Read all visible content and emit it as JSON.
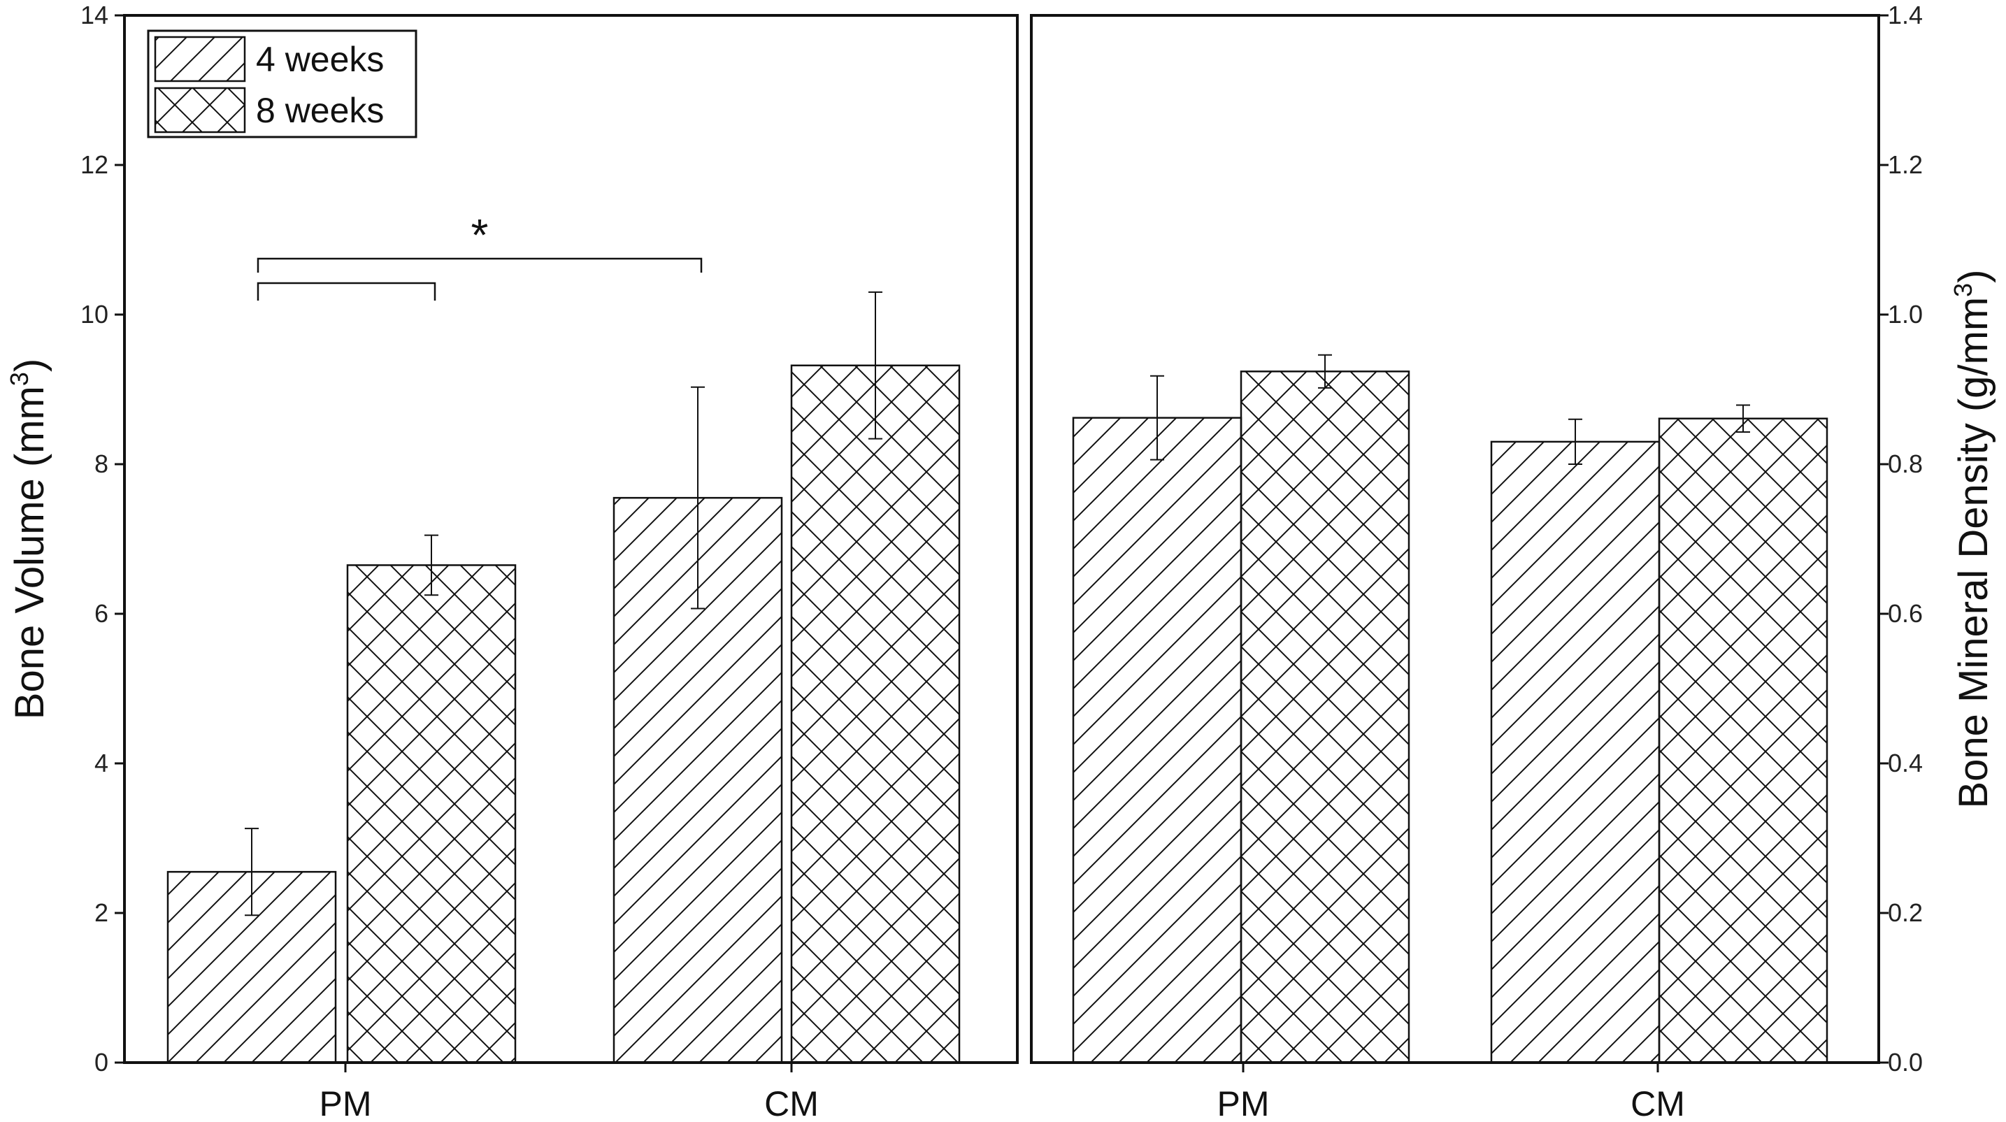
{
  "chart_data": [
    {
      "type": "bar",
      "panel": "left",
      "categories": [
        "PM",
        "CM"
      ],
      "ylabel_text": "Bone Volume (mm",
      "ylabel_sup": "3",
      "ylabel_close": ")",
      "ylim": [
        0,
        14
      ],
      "yticks": [
        "0",
        "2",
        "4",
        "6",
        "8",
        "10",
        "12",
        "14"
      ],
      "ytick_values": [
        0,
        2,
        4,
        6,
        8,
        10,
        12,
        14
      ],
      "series": [
        {
          "name": "4 weeks",
          "pattern": "hatch",
          "values": [
            2.55,
            7.55
          ],
          "errors": [
            0.58,
            1.48
          ]
        },
        {
          "name": "8 weeks",
          "pattern": "crosshatch",
          "values": [
            6.65,
            9.32
          ],
          "errors": [
            0.4,
            0.98
          ]
        }
      ],
      "significance": {
        "marker": "*",
        "upper_bracket": [
          "PM 4 weeks",
          "CM 4 weeks"
        ],
        "lower_bracket": [
          "PM 4 weeks",
          "PM 8 weeks"
        ]
      },
      "legend_position": "top-left",
      "grid": false
    },
    {
      "type": "bar",
      "panel": "right",
      "categories": [
        "PM",
        "CM"
      ],
      "ylabel_text": "Bone Mineral Density (g/mm",
      "ylabel_sup": "3",
      "ylabel_close": ")",
      "ylim": [
        0,
        1.4
      ],
      "yticks": [
        "0.0",
        "0.2",
        "0.4",
        "0.6",
        "0.8",
        "1.0",
        "1.2",
        "1.4"
      ],
      "ytick_values": [
        0,
        0.2,
        0.4,
        0.6,
        0.8,
        1.0,
        1.2,
        1.4
      ],
      "series": [
        {
          "name": "4 weeks",
          "pattern": "hatch",
          "values": [
            0.862,
            0.83
          ],
          "errors": [
            0.056,
            0.03
          ]
        },
        {
          "name": "8 weeks",
          "pattern": "crosshatch",
          "values": [
            0.924,
            0.861
          ],
          "errors": [
            0.022,
            0.018
          ]
        }
      ],
      "grid": false
    }
  ],
  "legend": {
    "items": [
      {
        "label": "4 weeks",
        "pattern": "hatch"
      },
      {
        "label": "8 weeks",
        "pattern": "crosshatch"
      }
    ]
  },
  "colors": {
    "stroke": "#111111",
    "fill": "#ffffff"
  }
}
